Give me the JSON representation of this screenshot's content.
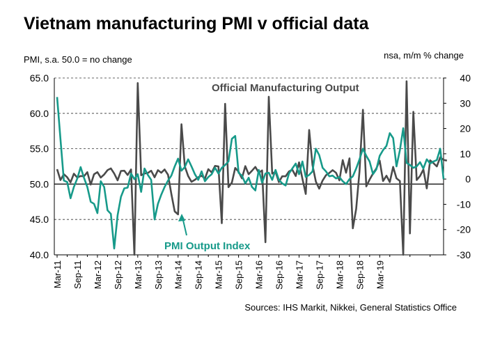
{
  "chart_data": {
    "type": "line",
    "title": "Vietnam manufacturing PMI v official data",
    "left_axis_label": "PMI, s.a. 50.0 = no change",
    "right_axis_label": "nsa, m/m % change",
    "source": "Sources: IHS Markit, Nikkei, General Statistics Office",
    "x_tick_labels": [
      "Mar-11",
      "Sep-11",
      "Mar-12",
      "Sep-12",
      "Mar-13",
      "Sep-13",
      "Mar-14",
      "Sep-14",
      "Mar-15",
      "Sep-15",
      "Mar-16",
      "Sep-16",
      "Mar-17",
      "Sep-17",
      "Mar-18",
      "Sep-18",
      "Mar-19"
    ],
    "left_axis": {
      "ylim": [
        40,
        65
      ],
      "ticks": [
        "40.0",
        "45.0",
        "50.0",
        "55.0",
        "60.0",
        "65.0"
      ],
      "tick_values": [
        40,
        45,
        50,
        55,
        60,
        65
      ]
    },
    "right_axis": {
      "ylim": [
        -30,
        40
      ],
      "ticks": [
        "-30",
        "-20",
        "-10",
        "0",
        "10",
        "20",
        "30",
        "40"
      ],
      "tick_values": [
        -30,
        -20,
        -10,
        0,
        10,
        20,
        30,
        40
      ]
    },
    "grid": "horizontal-dashed",
    "colors": {
      "pmi": "#179a8a",
      "official": "#4a4a4a",
      "zero_line": "#000000"
    },
    "annotations": [
      {
        "text": "Official Manufacturing Output",
        "series": "Official Manufacturing Output"
      },
      {
        "text": "PMI Output Index",
        "series": "PMI Output Index"
      }
    ],
    "start_month": "Mar-11",
    "series": [
      {
        "name": "PMI Output Index",
        "axis": "left",
        "values": [
          62.3,
          56.4,
          50.5,
          50.3,
          48.0,
          49.6,
          50.8,
          52.4,
          50.9,
          49.6,
          47.5,
          47.2,
          45.9,
          50.4,
          49.6,
          46.3,
          45.8,
          40.9,
          45.6,
          48.2,
          49.4,
          49.5,
          51.5,
          50.7,
          51.4,
          48.9,
          52.2,
          51.3,
          50.6,
          45.0,
          47.2,
          48.5,
          49.6,
          50.5,
          51.2,
          52.5,
          53.6,
          51.9,
          52.4,
          53.5,
          52.5,
          51.4,
          50.6,
          51.8,
          50.4,
          51.0,
          51.4,
          52.3,
          51.5,
          52.3,
          52.7,
          53.2,
          56.4,
          56.8,
          51.6,
          51.2,
          50.1,
          50.9,
          49.6,
          49.1,
          52.0,
          50.2,
          51.5,
          51.6,
          50.6,
          52.0,
          50.6,
          50.1,
          49.8,
          51.5,
          52.2,
          52.9,
          51.4,
          53.2,
          51.0,
          51.3,
          51.8,
          55.0,
          54.1,
          52.3,
          51.8,
          51.1,
          51.2,
          50.8,
          51.0,
          50.4,
          50.0,
          50.7,
          51.1,
          52.2,
          53.5,
          55.0,
          54.0,
          53.2,
          51.4,
          52.1,
          54.0,
          54.8,
          55.4,
          57.2,
          56.5,
          52.5,
          54.8,
          57.9,
          53.0,
          52.7,
          52.3,
          52.5,
          53.1,
          52.2,
          53.5,
          52.9,
          53.2,
          53.4,
          55.0,
          50.7
        ]
      },
      {
        "name": "Official Manufacturing Output",
        "axis": "right",
        "values": [
          3.9,
          -0.4,
          1.9,
          0.7,
          -1.3,
          2.1,
          0.6,
          1.2,
          1.1,
          2.7,
          -2.2,
          1.9,
          2.7,
          0.6,
          1.8,
          3.5,
          4.2,
          2.2,
          -0.5,
          3.2,
          3.3,
          1.6,
          3.8,
          -30,
          38,
          1.5,
          2.2,
          2.4,
          3.3,
          0.7,
          3.5,
          2.5,
          3.8,
          1.7,
          -5.9,
          -12.8,
          -14,
          21.7,
          5,
          1.2,
          -1.1,
          -0.3,
          0.7,
          1.3,
          0.2,
          3.9,
          2.6,
          5.2,
          5.0,
          -17.5,
          29.8,
          -3.2,
          -1.4,
          4.4,
          2.9,
          0.3,
          5.1,
          1.9,
          3.3,
          4.8,
          2.5,
          3.4,
          -25,
          32.6,
          2.1,
          2.9,
          -1.2,
          1.1,
          1.1,
          3.0,
          3.7,
          1.2,
          6.6,
          0.1,
          -5.9,
          19.4,
          5.5,
          -1,
          -3.8,
          -0.6,
          1.5,
          2.4,
          3.5,
          2.5,
          -0.5,
          7.5,
          2.5,
          8.2,
          -19.5,
          -11.8,
          3.1,
          27.4,
          -2.9,
          -0.2,
          2.2,
          4.2,
          7.3,
          -0.8,
          1.3,
          -1.2,
          4.8,
          0.3,
          -0.8,
          -30,
          38.7,
          -21.5,
          26.6,
          -0.4,
          1.2,
          3.8,
          -3.7,
          7.4,
          6.3,
          5.0,
          8.6,
          7.6,
          7.3
        ]
      }
    ]
  }
}
